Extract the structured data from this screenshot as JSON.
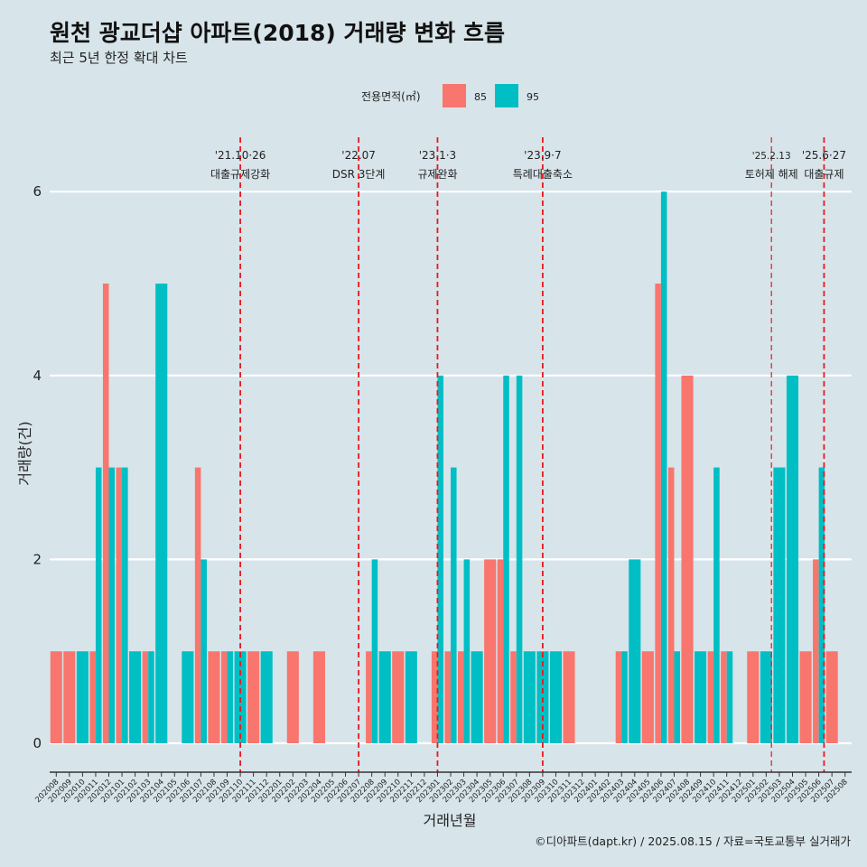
{
  "title": "원천 광교더샵 아파트(2018) 거래량 변화 흐름",
  "subtitle": "최근 5년 한정 확대 차트",
  "caption": "©디아파트(dapt.kr) / 2025.08.15 / 자료=국토교통부 실거래가",
  "colors": {
    "s85": "#F8766D",
    "s95": "#00BFC4",
    "event": "#E8191F",
    "background": "#d7e4ea",
    "grid": "#ffffff"
  },
  "chart_data": {
    "type": "bar",
    "xlabel": "거래년월",
    "ylabel": "거래량(건)",
    "ylim": [
      -0.5,
      6.8
    ],
    "yticks": [
      0,
      2,
      4,
      6
    ],
    "legend_title": "전용면적(㎡)",
    "legend_position": "top",
    "categories": [
      "202008",
      "202009",
      "202010",
      "202011",
      "202012",
      "202101",
      "202102",
      "202103",
      "202104",
      "202105",
      "202106",
      "202107",
      "202108",
      "202109",
      "202110",
      "202111",
      "202112",
      "202201",
      "202202",
      "202203",
      "202204",
      "202205",
      "202206",
      "202207",
      "202208",
      "202209",
      "202210",
      "202211",
      "202212",
      "202301",
      "202302",
      "202303",
      "202304",
      "202305",
      "202306",
      "202307",
      "202308",
      "202309",
      "202310",
      "202311",
      "202312",
      "202401",
      "202402",
      "202403",
      "202404",
      "202405",
      "202406",
      "202407",
      "202408",
      "202409",
      "202410",
      "202411",
      "202412",
      "202501",
      "202502",
      "202503",
      "202504",
      "202505",
      "202506",
      "202507",
      "202508"
    ],
    "series": [
      {
        "name": "85",
        "values": [
          1,
          1,
          0,
          1,
          5,
          3,
          0,
          1,
          0,
          0,
          0,
          3,
          1,
          1,
          0,
          1,
          0,
          0,
          1,
          0,
          1,
          0,
          0,
          0,
          1,
          0,
          1,
          0,
          0,
          1,
          1,
          1,
          0,
          2,
          2,
          1,
          0,
          0,
          0,
          1,
          0,
          0,
          0,
          1,
          0,
          1,
          5,
          3,
          4,
          0,
          1,
          1,
          0,
          1,
          0,
          0,
          0,
          1,
          2,
          1,
          0
        ]
      },
      {
        "name": "95",
        "values": [
          0,
          0,
          1,
          3,
          3,
          3,
          1,
          1,
          5,
          0,
          1,
          2,
          0,
          1,
          1,
          0,
          1,
          0,
          0,
          0,
          0,
          0,
          0,
          0,
          2,
          1,
          0,
          1,
          0,
          4,
          3,
          2,
          1,
          0,
          4,
          4,
          1,
          1,
          1,
          0,
          0,
          0,
          0,
          1,
          2,
          0,
          6,
          1,
          0,
          1,
          3,
          1,
          0,
          0,
          1,
          3,
          4,
          0,
          3,
          0,
          0
        ]
      }
    ],
    "events": [
      {
        "date": "'21.10·26",
        "label": "대출규제강화",
        "position": 14.0
      },
      {
        "date": "'22.07",
        "label": "DSR 3단계",
        "position": 23.0
      },
      {
        "date": "'23.1·3",
        "label": "규제완화",
        "position": 29.0
      },
      {
        "date": "'23.9·7",
        "label": "특례대출축소",
        "position": 37.0
      },
      {
        "date": "'25.2.13",
        "label": "토허제 해제",
        "position": 54.4
      },
      {
        "date": "'25.6·27",
        "label": "대출규제",
        "position": 58.4
      }
    ]
  }
}
